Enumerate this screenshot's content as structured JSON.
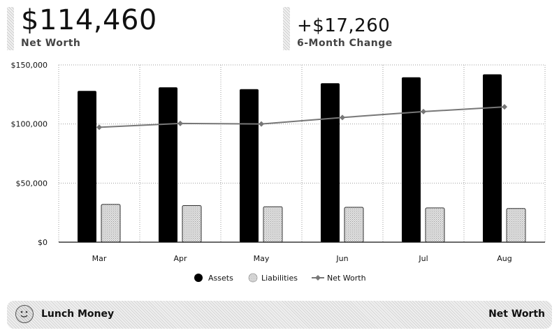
{
  "summary": {
    "net_worth_value": "$114,460",
    "net_worth_label": "Net Worth",
    "change_value": "+$17,260",
    "change_label": "6-Month Change"
  },
  "footer": {
    "brand": "Lunch Money",
    "page_title": "Net Worth",
    "logo_icon": "smiley-face-icon"
  },
  "chart_data": {
    "type": "bar",
    "categories": [
      "Mar",
      "Apr",
      "May",
      "Jun",
      "Jul",
      "Aug"
    ],
    "series": [
      {
        "name": "Assets",
        "type": "bar",
        "values": [
          128000,
          131000,
          129500,
          134500,
          139500,
          142000
        ]
      },
      {
        "name": "Liabilities",
        "type": "bar",
        "values": [
          32000,
          31000,
          30000,
          29500,
          29000,
          28500
        ]
      },
      {
        "name": "Net Worth",
        "type": "line",
        "values": [
          97200,
          100500,
          100000,
          105500,
          110500,
          114460
        ]
      }
    ],
    "ylim": [
      0,
      150000
    ],
    "yticks": [
      "$0",
      "$50,000",
      "$100,000",
      "$150,000"
    ],
    "ytick_values": [
      0,
      50000,
      100000,
      150000
    ],
    "grid": true,
    "legend": "bottom",
    "colors": {
      "Assets": "#000000",
      "Liabilities": "#d4d4d4",
      "Net Worth": "#777777"
    }
  }
}
